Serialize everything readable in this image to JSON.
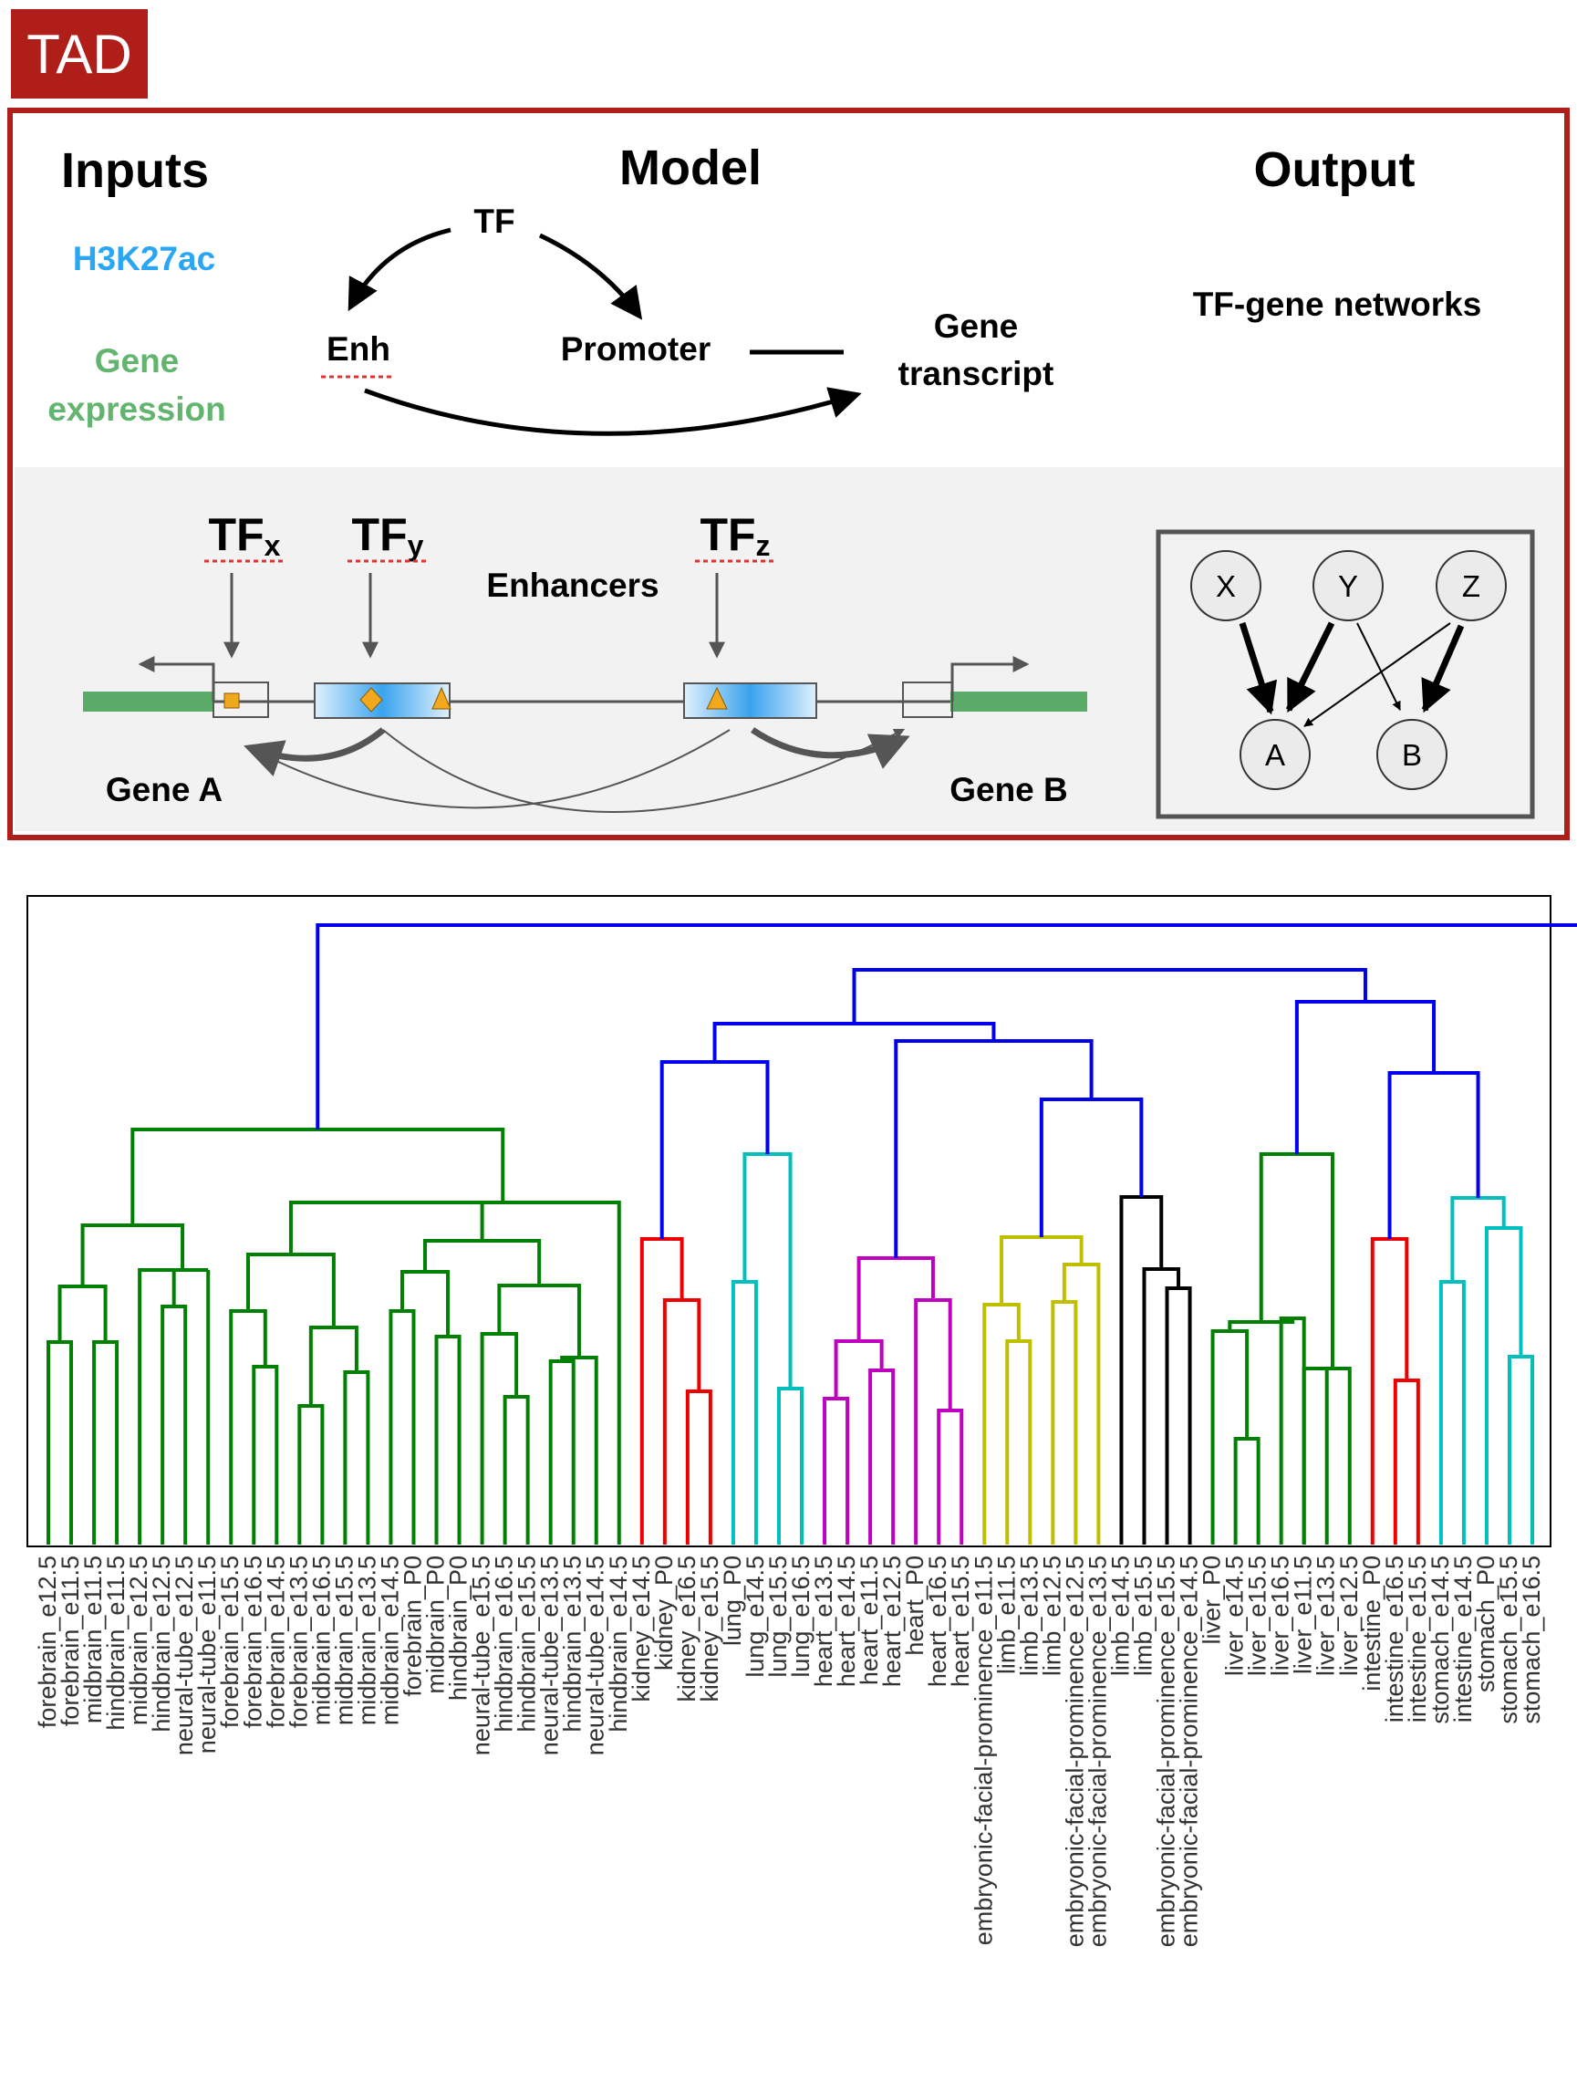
{
  "badge": {
    "label": "TAD"
  },
  "panel": {
    "inputs": {
      "heading": "Inputs",
      "h3k27ac": "H3K27ac",
      "gene_expression_line1": "Gene",
      "gene_expression_line2": "expression"
    },
    "model": {
      "heading": "Model",
      "tf": "TF",
      "enh": "Enh",
      "promoter": "Promoter",
      "gene_transcript_line1": "Gene",
      "gene_transcript_line2": "transcript"
    },
    "output": {
      "heading": "Output",
      "networks": "TF-gene networks"
    },
    "locus": {
      "tfx": "TF",
      "tfx_sub": "x",
      "tfy": "TF",
      "tfy_sub": "y",
      "tfz": "TF",
      "tfz_sub": "z",
      "enhancers": "Enhancers",
      "gene_a": "Gene A",
      "gene_b": "Gene B"
    },
    "network": {
      "nodes": [
        "X",
        "Y",
        "Z",
        "A",
        "B"
      ]
    }
  },
  "colors": {
    "badge_red": "#b01e1a",
    "inputs_blue": "#2aa6f2",
    "inputs_green": "#62b46e",
    "gene_bar_green": "#5aaa68",
    "enhancer_blue": "#3aa3ee",
    "motif_orange": "#f2a81d",
    "dendro_blue": "#0000ee",
    "dendro_green": "#008000",
    "dendro_red": "#ee0000",
    "dendro_cyan": "#00bfbf",
    "dendro_magenta": "#bf00bf",
    "dendro_olive": "#bfbf00",
    "dendro_black": "#000000"
  },
  "dendrogram": {
    "type": "dendrogram",
    "leaves": [
      "forebrain_e12.5",
      "forebrain_e11.5",
      "midbrain_e11.5",
      "hindbrain_e11.5",
      "midbrain_e12.5",
      "hindbrain_e12.5",
      "neural-tube_e12.5",
      "neural-tube_e11.5",
      "forebrain_e15.5",
      "forebrain_e16.5",
      "forebrain_e14.5",
      "forebrain_e13.5",
      "midbrain_e16.5",
      "midbrain_e15.5",
      "midbrain_e13.5",
      "midbrain_e14.5",
      "forebrain_P0",
      "midbrain_P0",
      "hindbrain_P0",
      "neural-tube_e15.5",
      "hindbrain_e16.5",
      "hindbrain_e15.5",
      "neural-tube_e13.5",
      "hindbrain_e13.5",
      "neural-tube_e14.5",
      "hindbrain_e14.5",
      "kidney_e14.5",
      "kidney_P0",
      "kidney_e16.5",
      "kidney_e15.5",
      "lung_P0",
      "lung_e14.5",
      "lung_e15.5",
      "lung_e16.5",
      "heart_e13.5",
      "heart_e14.5",
      "heart_e11.5",
      "heart_e12.5",
      "heart_P0",
      "heart_e16.5",
      "heart_e15.5",
      "embryonic-facial-prominence_e11.5",
      "limb_e11.5",
      "limb_e13.5",
      "limb_e12.5",
      "embryonic-facial-prominence_e12.5",
      "embryonic-facial-prominence_e13.5",
      "limb_e14.5",
      "limb_e15.5",
      "embryonic-facial-prominence_e15.5",
      "embryonic-facial-prominence_e14.5",
      "liver_P0",
      "liver_e14.5",
      "liver_e15.5",
      "liver_e16.5",
      "liver_e11.5",
      "liver_e13.5",
      "liver_e12.5",
      "intestine_P0",
      "intestine_e16.5",
      "intestine_e15.5",
      "stomach_e14.5",
      "intestine_e14.5",
      "stomach_P0",
      "stomach_e15.5",
      "stomach_e16.5"
    ],
    "leaf_colors": [
      "green",
      "green",
      "green",
      "green",
      "green",
      "green",
      "green",
      "green",
      "green",
      "green",
      "green",
      "green",
      "green",
      "green",
      "green",
      "green",
      "green",
      "green",
      "green",
      "green",
      "green",
      "green",
      "green",
      "green",
      "green",
      "green",
      "red",
      "red",
      "red",
      "red",
      "cyan",
      "cyan",
      "cyan",
      "cyan",
      "magenta",
      "magenta",
      "magenta",
      "magenta",
      "magenta",
      "magenta",
      "magenta",
      "olive",
      "olive",
      "olive",
      "olive",
      "olive",
      "olive",
      "black",
      "black",
      "black",
      "black",
      "green",
      "green",
      "green",
      "green",
      "green",
      "green",
      "green",
      "red",
      "red",
      "red",
      "cyan",
      "cyan",
      "cyan",
      "cyan",
      "cyan"
    ]
  }
}
